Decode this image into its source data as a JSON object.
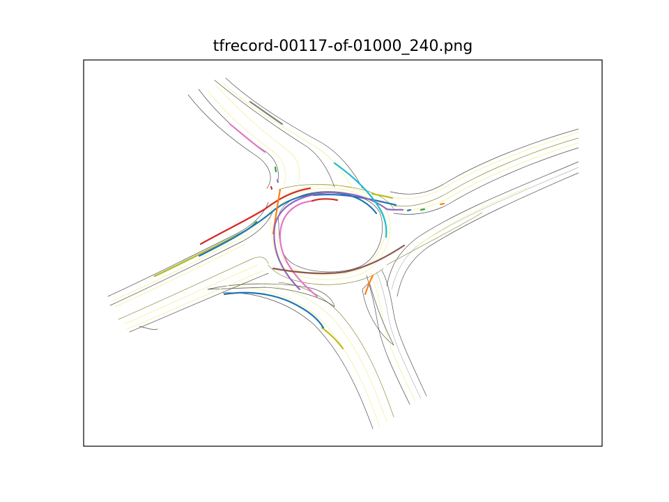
{
  "figure": {
    "title": "tfrecord-00117-of-01000_240.png"
  },
  "colors": {
    "road_edge": "#4d4d4d",
    "lane_center": "#f4f09a",
    "road_olive": "#8a8a3a",
    "lane_grey": "#b5b5b5",
    "axes_frame": "#000000"
  },
  "trajectories": [
    {
      "id": "t-blue-1",
      "color": "#1f77b4"
    },
    {
      "id": "t-orange-1",
      "color": "#ff7f0e"
    },
    {
      "id": "t-green-1",
      "color": "#2ca02c"
    },
    {
      "id": "t-red-1",
      "color": "#d62728"
    },
    {
      "id": "t-purple-1",
      "color": "#9467bd"
    },
    {
      "id": "t-brown-1",
      "color": "#8c564b"
    },
    {
      "id": "t-pink-1",
      "color": "#e377c2"
    },
    {
      "id": "t-gray-1",
      "color": "#7f7f7f"
    },
    {
      "id": "t-olive-1",
      "color": "#bcbd22"
    },
    {
      "id": "t-cyan-1",
      "color": "#17becf"
    }
  ]
}
